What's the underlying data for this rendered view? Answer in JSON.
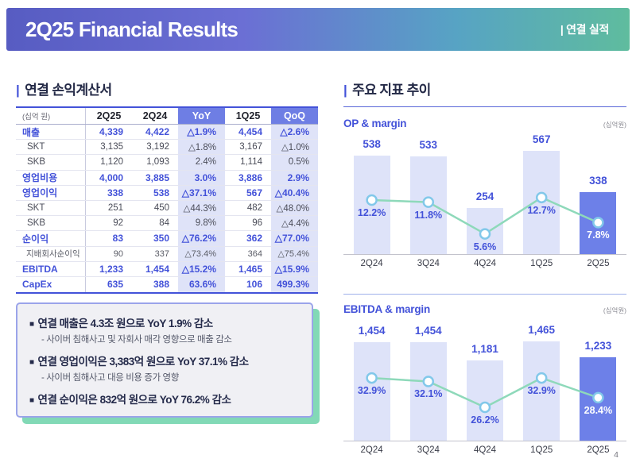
{
  "header": {
    "title": "2Q25 Financial Results",
    "right_label": "| 연결 실적"
  },
  "page_number": "4",
  "income_statement": {
    "tick": "|",
    "section_title": "연결 손익계산서",
    "unit_label": "(십억 원)",
    "columns": [
      "2Q25",
      "2Q24",
      "YoY",
      "1Q25",
      "QoQ"
    ],
    "rows": [
      {
        "label": "매출",
        "style": "primary",
        "values": [
          "4,339",
          "4,422",
          "△1.9%",
          "4,454",
          "△2.6%"
        ]
      },
      {
        "label": "SKT",
        "style": "sub",
        "values": [
          "3,135",
          "3,192",
          "△1.8%",
          "3,167",
          "△1.0%"
        ]
      },
      {
        "label": "SKB",
        "style": "sub",
        "values": [
          "1,120",
          "1,093",
          "2.4%",
          "1,114",
          "0.5%"
        ]
      },
      {
        "label": "영업비용",
        "style": "primary",
        "values": [
          "4,000",
          "3,885",
          "3.0%",
          "3,886",
          "2.9%"
        ]
      },
      {
        "label": "영업이익",
        "style": "primary",
        "values": [
          "338",
          "538",
          "△37.1%",
          "567",
          "△40.4%"
        ]
      },
      {
        "label": "SKT",
        "style": "sub",
        "values": [
          "251",
          "450",
          "△44.3%",
          "482",
          "△48.0%"
        ]
      },
      {
        "label": "SKB",
        "style": "sub",
        "values": [
          "92",
          "84",
          "9.8%",
          "96",
          "△4.4%"
        ]
      },
      {
        "label": "순이익",
        "style": "primary",
        "values": [
          "83",
          "350",
          "△76.2%",
          "362",
          "△77.0%"
        ]
      },
      {
        "label": "지배회사순이익",
        "style": "sub_small",
        "values": [
          "90",
          "337",
          "△73.4%",
          "364",
          "△75.4%"
        ]
      },
      {
        "label": "EBITDA",
        "style": "primary",
        "values": [
          "1,233",
          "1,454",
          "△15.2%",
          "1,465",
          "△15.9%"
        ]
      },
      {
        "label": "CapEx",
        "style": "primary",
        "values": [
          "635",
          "388",
          "63.6%",
          "106",
          "499.3%"
        ]
      }
    ]
  },
  "highlights": {
    "marker": "■",
    "items": [
      {
        "title": "연결 매출은 4.3조 원으로 YoY 1.9% 감소",
        "sub": "- 사이버 침해사고 및 자회사 매각 영향으로 매출 감소"
      },
      {
        "title": "연결 영업이익은 3,383억 원으로 YoY 37.1% 감소",
        "sub": "- 사이버 침해사고 대응 비용 증가 영향"
      },
      {
        "title": "연결 순이익은 832억 원으로 YoY 76.2% 감소",
        "sub": null
      }
    ]
  },
  "trends": {
    "tick": "|",
    "section_title": "주요 지표 추이"
  },
  "chart_data": [
    {
      "type": "bar",
      "combo": "bar+line",
      "title": "OP & margin",
      "unit": "(십억원)",
      "categories": [
        "2Q24",
        "3Q24",
        "4Q24",
        "1Q25",
        "2Q25"
      ],
      "series": [
        {
          "name": "OP",
          "kind": "bar",
          "values": [
            538,
            533,
            254,
            567,
            338
          ],
          "labels": [
            "538",
            "533",
            "254",
            "567",
            "338"
          ]
        },
        {
          "name": "OP margin",
          "kind": "line",
          "values": [
            12.2,
            11.8,
            5.6,
            12.7,
            7.8
          ],
          "labels": [
            "12.2%",
            "11.8%",
            "5.6%",
            "12.7%",
            "7.8%"
          ]
        }
      ],
      "ylim": [
        0,
        630
      ],
      "margin_ylim": [
        1.5,
        24
      ],
      "highlight_index": 4,
      "grid": false,
      "legend": "none"
    },
    {
      "type": "bar",
      "combo": "bar+line",
      "title": "EBITDA & margin",
      "unit": "(십억원)",
      "categories": [
        "2Q24",
        "3Q24",
        "4Q24",
        "1Q25",
        "2Q25"
      ],
      "series": [
        {
          "name": "EBITDA",
          "kind": "bar",
          "values": [
            1454,
            1454,
            1181,
            1465,
            1233
          ],
          "labels": [
            "1,454",
            "1,454",
            "1,181",
            "1,465",
            "1,233"
          ]
        },
        {
          "name": "EBITDA margin",
          "kind": "line",
          "values": [
            32.9,
            32.1,
            26.2,
            32.9,
            28.4
          ],
          "labels": [
            "32.9%",
            "32.1%",
            "26.2%",
            "32.9%",
            "28.4%"
          ]
        }
      ],
      "ylim": [
        0,
        1640
      ],
      "margin_ylim": [
        18.4,
        43.8
      ],
      "highlight_index": 4,
      "grid": false,
      "legend": "none"
    }
  ],
  "colors": {
    "accent_blue": "#4352d9",
    "banner_gradient": [
      "#575cc2",
      "#6b6fd4",
      "#57a3c4",
      "#5fbc9e"
    ],
    "table_header_accent_bg": "#6e7ee4",
    "shaded_column_bg": "#dfe3f8",
    "bar_light": "#dee3f9",
    "bar_highlight": "#6d80e8",
    "line_green": "#8ed9ba",
    "marker_ring": "#82c8ea",
    "pct_on_bar": "#ffffff",
    "box_border": "#9ba4ea",
    "box_shadow_green": "#82d9b6",
    "box_bg": "#f0f0f4"
  }
}
